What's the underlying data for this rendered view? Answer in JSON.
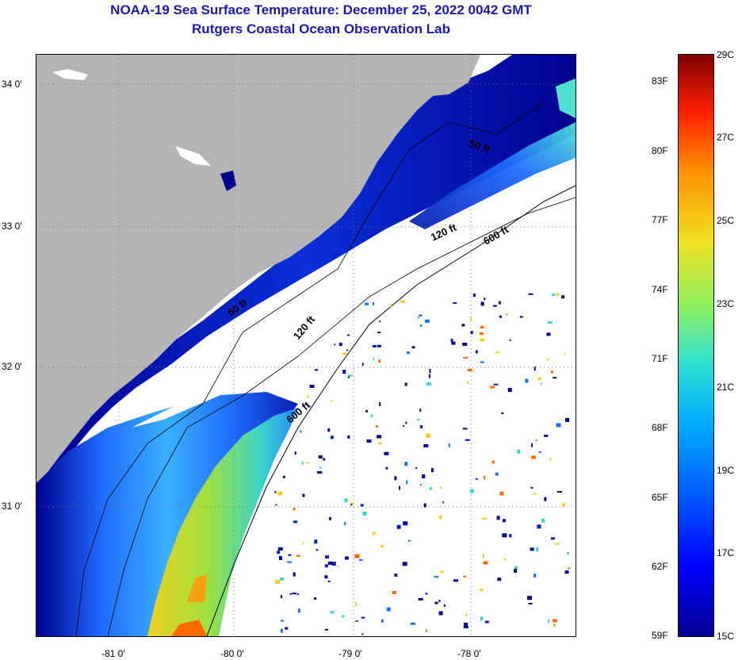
{
  "title": {
    "line1": "NOAA-19 Sea Surface Temperature:  December 25, 2022 0042 GMT",
    "line2": "Rutgers Coastal Ocean Observation Lab"
  },
  "map": {
    "lat_labels": [
      "34 0'",
      "33 0'",
      "32 0'",
      "31 0'"
    ],
    "lon_labels": [
      "-81 0'",
      "-80 0'",
      "-79 0'",
      "-78 0'"
    ],
    "contour_labels": [
      "50 ft",
      "120 ft",
      "600 ft",
      "50 ft",
      "120 ft",
      "600 ft"
    ],
    "colors": {
      "land": "#b4b4b4",
      "cloud": "#ffffff",
      "cold": "#00008f",
      "mid": "#1e6cff",
      "warm": "#e8e020",
      "hot": "#ff6a00"
    }
  },
  "colorbar": {
    "fahrenheit_labels": [
      "83F",
      "80F",
      "77F",
      "74F",
      "71F",
      "68F",
      "65F",
      "62F",
      "59F"
    ],
    "celsius_labels": [
      "29C",
      "27C",
      "25C",
      "23C",
      "21C",
      "19C",
      "17C",
      "15C"
    ],
    "range_c": [
      15,
      29
    ]
  }
}
